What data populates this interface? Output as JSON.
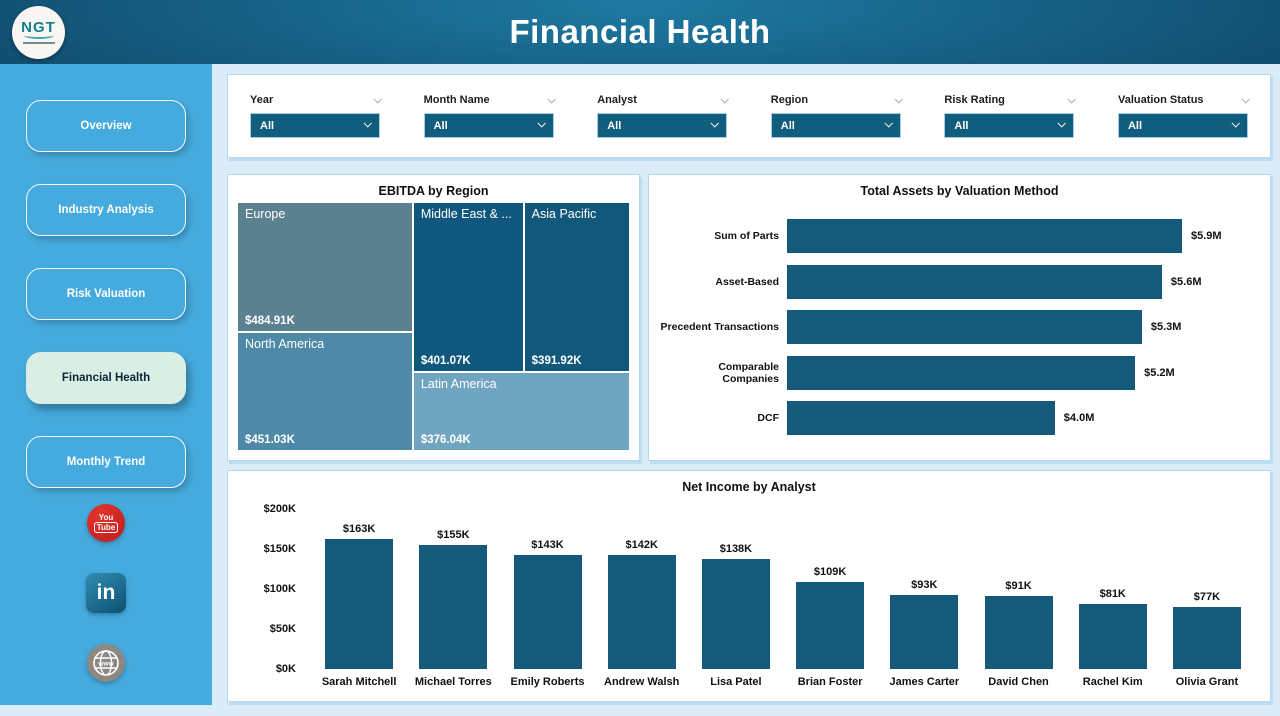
{
  "header": {
    "title": "Financial Health",
    "logo_text": "NGT"
  },
  "sidebar": {
    "items": [
      {
        "label": "Overview",
        "active": false
      },
      {
        "label": "Industry Analysis",
        "active": false
      },
      {
        "label": "Risk Valuation",
        "active": false
      },
      {
        "label": "Financial Health",
        "active": true
      },
      {
        "label": "Monthly Trend",
        "active": false
      }
    ],
    "social": {
      "youtube": {
        "line1": "You",
        "line2": "Tube"
      },
      "linkedin": {
        "label": "in"
      },
      "website": {
        "label": "www"
      }
    }
  },
  "filters": {
    "slicers": [
      {
        "label": "Year",
        "value": "All"
      },
      {
        "label": "Month Name",
        "value": "All"
      },
      {
        "label": "Analyst",
        "value": "All"
      },
      {
        "label": "Region",
        "value": "All"
      },
      {
        "label": "Risk Rating",
        "value": "All"
      },
      {
        "label": "Valuation Status",
        "value": "All"
      }
    ]
  },
  "chart_data": [
    {
      "type": "treemap",
      "title": "EBITDA by Region",
      "items": [
        {
          "label": "Europe",
          "value": 484.91,
          "value_label": "$484.91K",
          "color": "#5b8090"
        },
        {
          "label": "North America",
          "value": 451.03,
          "value_label": "$451.03K",
          "color": "#4e89a8"
        },
        {
          "label": "Middle East & ...",
          "value": 401.07,
          "value_label": "$401.07K",
          "color": "#10577d"
        },
        {
          "label": "Asia Pacific",
          "value": 391.92,
          "value_label": "$391.92K",
          "color": "#11587b"
        },
        {
          "label": "Latin America",
          "value": 376.04,
          "value_label": "$376.04K",
          "color": "#70a5c2"
        }
      ],
      "unit": "thousand USD"
    },
    {
      "type": "bar",
      "title": "Total Assets by Valuation Method",
      "categories": [
        "Sum of Parts",
        "Asset-Based",
        "Precedent Transactions",
        "Comparable Companies",
        "DCF"
      ],
      "values": [
        5.9,
        5.6,
        5.3,
        5.2,
        4.0
      ],
      "labels": [
        "$5.9M",
        "$5.6M",
        "$5.3M",
        "$5.2M",
        "$4.0M"
      ],
      "xlim": [
        0,
        5.9
      ],
      "orientation": "horizontal",
      "grid": false
    },
    {
      "type": "column",
      "title": "Net Income by Analyst",
      "categories": [
        "Sarah Mitchell",
        "Michael Torres",
        "Emily Roberts",
        "Andrew Walsh",
        "Lisa Patel",
        "Brian Foster",
        "James Carter",
        "David Chen",
        "Rachel Kim",
        "Olivia Grant"
      ],
      "values": [
        163,
        155,
        143,
        142,
        138,
        109,
        93,
        91,
        81,
        77
      ],
      "labels": [
        "$163K",
        "$155K",
        "$143K",
        "$142K",
        "$138K",
        "$109K",
        "$93K",
        "$91K",
        "$81K",
        "$77K"
      ],
      "yticks": [
        "$0K",
        "$50K",
        "$100K",
        "$150K",
        "$200K"
      ],
      "ylim": [
        0,
        200
      ],
      "grid": false
    }
  ],
  "colors": {
    "bar": "#15597b",
    "sidebar": "#45aadd",
    "slicer_bg": "#115d7e",
    "active_nav_bg": "#d9efe6",
    "header_dark": "#0d4463"
  }
}
